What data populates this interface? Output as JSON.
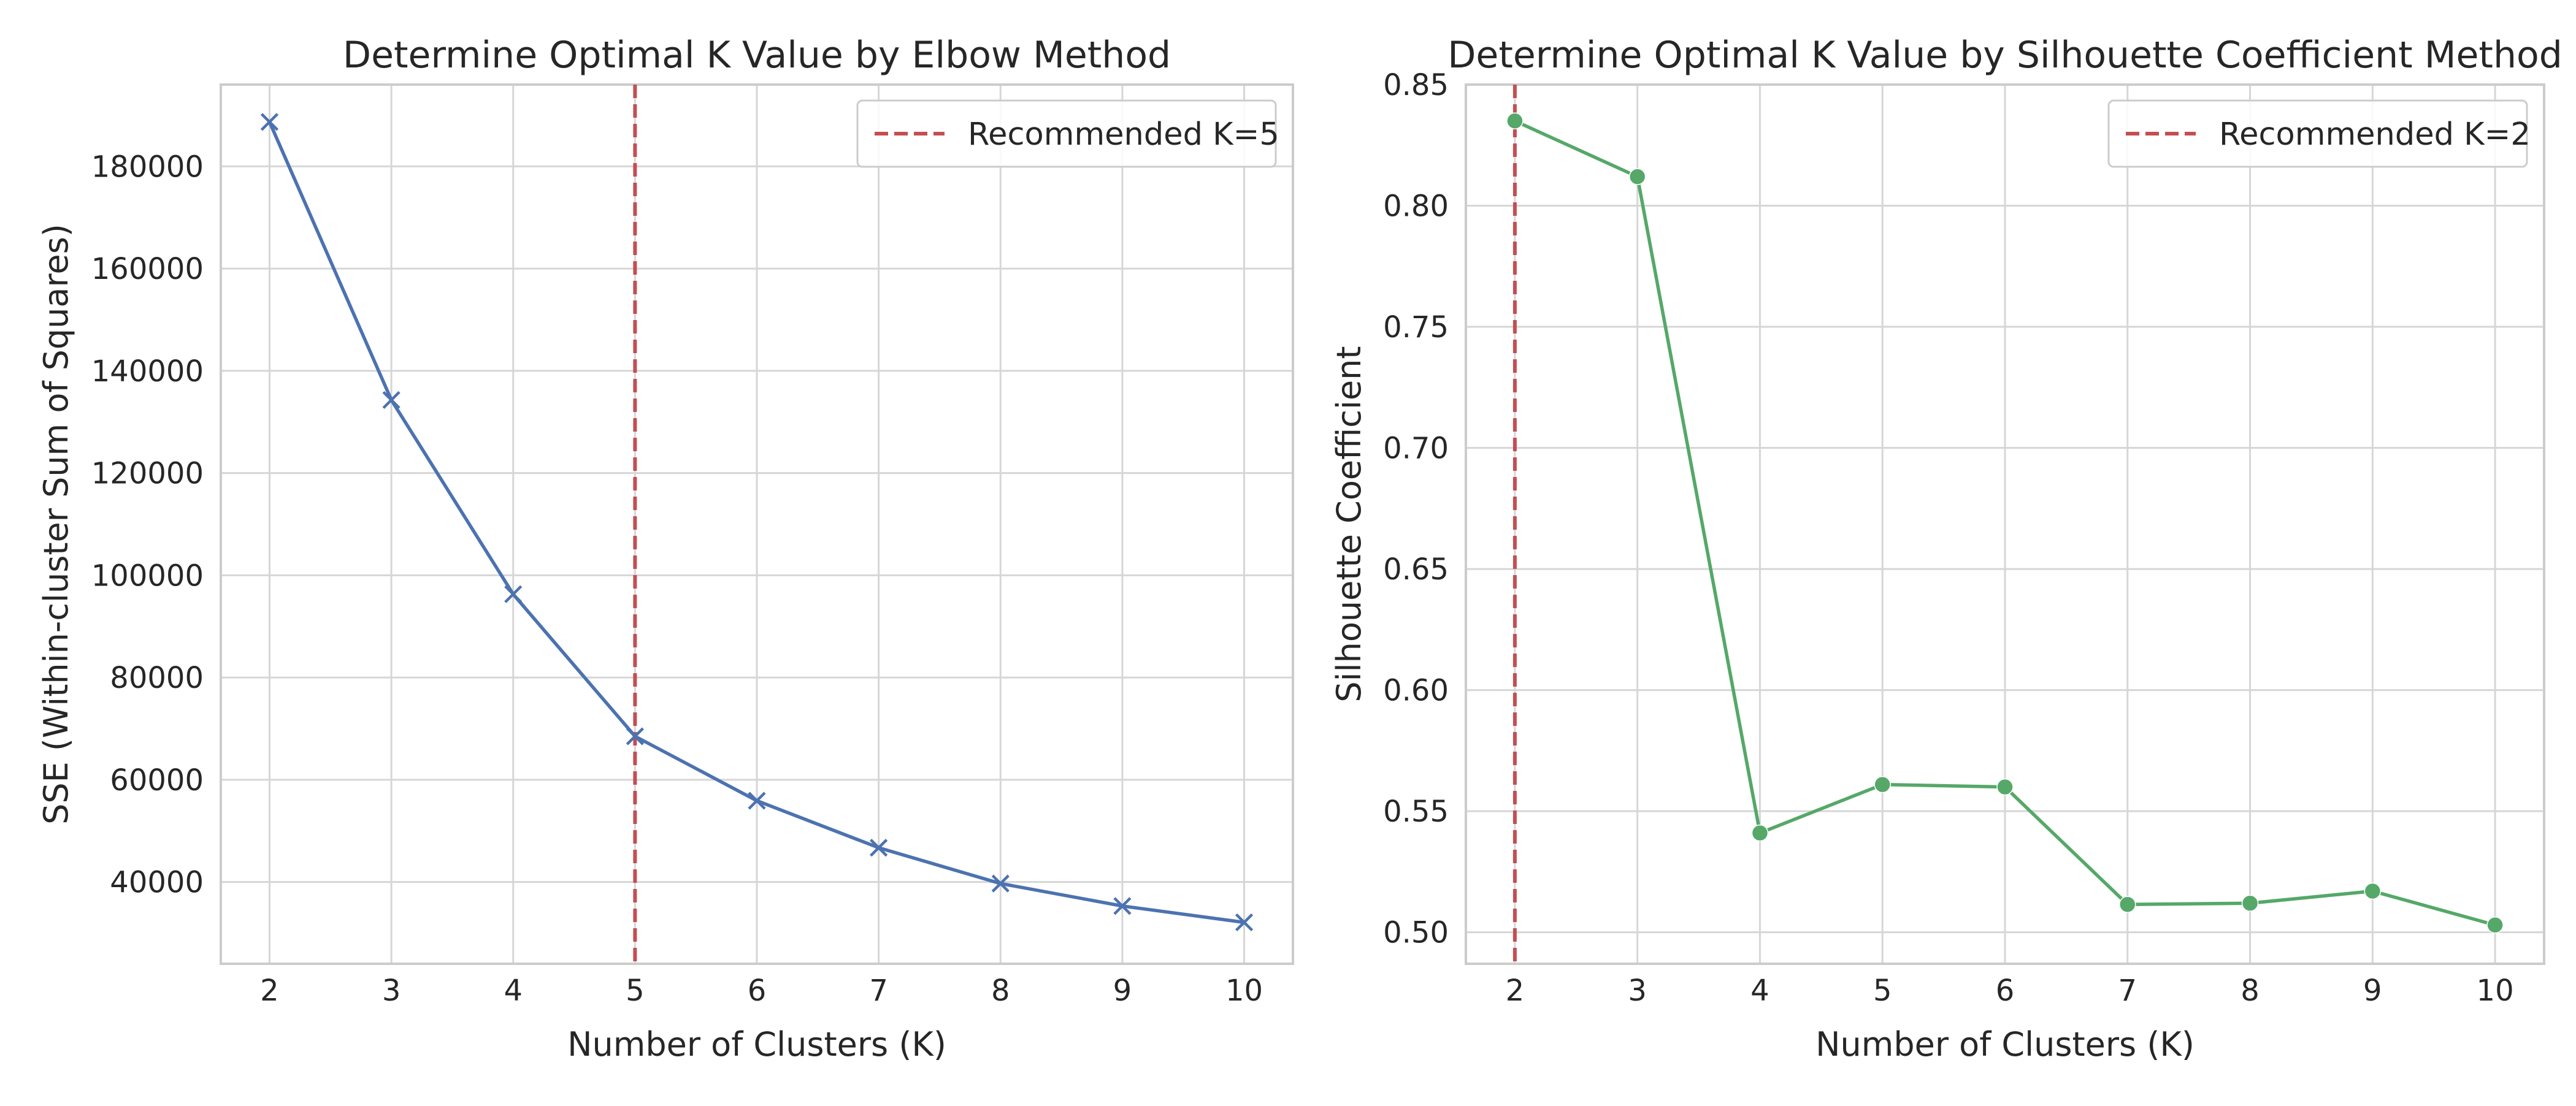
{
  "chart_data": [
    {
      "type": "line",
      "title": "Determine Optimal K Value by Elbow Method",
      "xlabel": "Number of Clusters (K)",
      "ylabel": "SSE (Within-cluster Sum of Squares)",
      "x": [
        2,
        3,
        4,
        5,
        6,
        7,
        8,
        9,
        10
      ],
      "xlim": [
        1.6,
        10.4
      ],
      "ylim": [
        24000,
        196000
      ],
      "xticks": [
        2,
        3,
        4,
        5,
        6,
        7,
        8,
        9,
        10
      ],
      "yticks": [
        40000,
        60000,
        80000,
        100000,
        120000,
        140000,
        160000,
        180000
      ],
      "grid": true,
      "legend_position": "top-right",
      "series": [
        {
          "values": [
            188700,
            134300,
            96300,
            68500,
            55900,
            46700,
            39700,
            35300,
            32100
          ],
          "color": "#4c72b0",
          "marker": "x"
        }
      ],
      "reference_line": {
        "axis": "x",
        "value": 5,
        "label": "Recommended K=5",
        "color": "#c44e52",
        "style": "dashed"
      }
    },
    {
      "type": "line",
      "title": "Determine Optimal K Value by Silhouette Coefficient Method",
      "xlabel": "Number of Clusters (K)",
      "ylabel": "Silhouette Coefficient",
      "x": [
        2,
        3,
        4,
        5,
        6,
        7,
        8,
        9,
        10
      ],
      "xlim": [
        1.6,
        10.4
      ],
      "ylim": [
        0.487,
        0.85
      ],
      "xticks": [
        2,
        3,
        4,
        5,
        6,
        7,
        8,
        9,
        10
      ],
      "yticks": [
        0.5,
        0.55,
        0.6,
        0.65,
        0.7,
        0.75,
        0.8,
        0.85
      ],
      "ytick_labels": [
        "0.50",
        "0.55",
        "0.60",
        "0.65",
        "0.70",
        "0.75",
        "0.80",
        "0.85"
      ],
      "grid": true,
      "legend_position": "top-right",
      "series": [
        {
          "values": [
            0.835,
            0.812,
            0.541,
            0.561,
            0.56,
            0.5115,
            0.512,
            0.517,
            0.503
          ],
          "color": "#55a868",
          "marker": "o"
        }
      ],
      "reference_line": {
        "axis": "x",
        "value": 2,
        "label": "Recommended K=2",
        "color": "#c44e52",
        "style": "dashed"
      }
    }
  ]
}
